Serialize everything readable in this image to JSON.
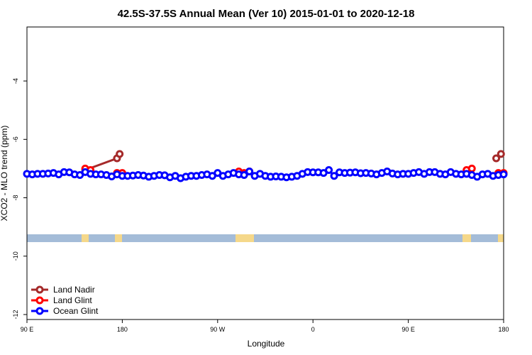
{
  "chart_data": {
    "type": "line",
    "title": "42.5S-37.5S Annual Mean (Ver 10)   2015-01-01 to 2020-12-18",
    "x_label": "Longitude",
    "y_label": "XCO2 - MLO trend (ppm)",
    "xlim": [
      90,
      540
    ],
    "xticks": [
      {
        "value": 90,
        "label": "90 E"
      },
      {
        "value": 180,
        "label": "180"
      },
      {
        "value": 270,
        "label": "90 W"
      },
      {
        "value": 360,
        "label": "0"
      },
      {
        "value": 450,
        "label": "90 E"
      },
      {
        "value": 540,
        "label": "180"
      }
    ],
    "ylim": [
      -12.17,
      -2.15
    ],
    "yticks": [
      -12,
      -10,
      -8,
      -6,
      -4
    ],
    "legend": "bottom-left",
    "series": [
      {
        "name": "Land Nadir",
        "color": "#a52a2a",
        "x": [
          145,
          175,
          177.5,
          500,
          533,
          537.5
        ],
        "values": [
          -7.05,
          -6.65,
          -6.5,
          null,
          -6.65,
          -6.5
        ]
      },
      {
        "name": "Land Glint",
        "color": "#ff0000",
        "x": [
          145,
          150,
          160,
          175,
          180,
          230,
          290,
          295,
          300,
          400,
          505,
          510,
          520,
          535,
          540
        ],
        "values": [
          -7.0,
          -7.05,
          null,
          -7.15,
          -7.15,
          null,
          -7.1,
          -7.15,
          -7.1,
          null,
          -7.05,
          -7.0,
          null,
          -7.15,
          -7.15
        ]
      },
      {
        "name": "Ocean Glint",
        "color": "#0000ff",
        "x": [
          90,
          95,
          100,
          105,
          110,
          115,
          120,
          125,
          130,
          135,
          140,
          145,
          150,
          155,
          160,
          165,
          170,
          175,
          180,
          185,
          190,
          195,
          200,
          205,
          210,
          215,
          220,
          225,
          230,
          235,
          240,
          245,
          250,
          255,
          260,
          265,
          270,
          275,
          280,
          285,
          290,
          295,
          300,
          305,
          310,
          315,
          320,
          325,
          330,
          335,
          340,
          345,
          350,
          355,
          360,
          365,
          370,
          375,
          380,
          385,
          390,
          395,
          400,
          405,
          410,
          415,
          420,
          425,
          430,
          435,
          440,
          445,
          450,
          455,
          460,
          465,
          470,
          475,
          480,
          485,
          490,
          495,
          500,
          505,
          510,
          515,
          520,
          525,
          530,
          535,
          540
        ],
        "values": [
          -7.18,
          -7.2,
          -7.18,
          -7.18,
          -7.17,
          -7.15,
          -7.2,
          -7.12,
          -7.13,
          -7.2,
          -7.22,
          -7.12,
          -7.18,
          -7.2,
          -7.2,
          -7.22,
          -7.27,
          -7.2,
          -7.25,
          -7.25,
          -7.24,
          -7.22,
          -7.24,
          -7.28,
          -7.25,
          -7.22,
          -7.23,
          -7.3,
          -7.25,
          -7.33,
          -7.28,
          -7.25,
          -7.25,
          -7.22,
          -7.2,
          -7.25,
          -7.15,
          -7.25,
          -7.2,
          -7.15,
          -7.2,
          -7.22,
          -7.1,
          -7.25,
          -7.18,
          -7.25,
          -7.28,
          -7.27,
          -7.28,
          -7.3,
          -7.28,
          -7.25,
          -7.18,
          -7.12,
          -7.13,
          -7.13,
          -7.15,
          -7.05,
          -7.25,
          -7.13,
          -7.15,
          -7.14,
          -7.13,
          -7.16,
          -7.15,
          -7.17,
          -7.2,
          -7.15,
          -7.1,
          -7.17,
          -7.2,
          -7.18,
          -7.18,
          -7.15,
          -7.12,
          -7.18,
          -7.12,
          -7.12,
          -7.18,
          -7.2,
          -7.12,
          -7.18,
          -7.2,
          -7.18,
          -7.22,
          -7.28,
          -7.2,
          -7.18,
          -7.25,
          -7.22,
          -7.2
        ]
      }
    ]
  }
}
